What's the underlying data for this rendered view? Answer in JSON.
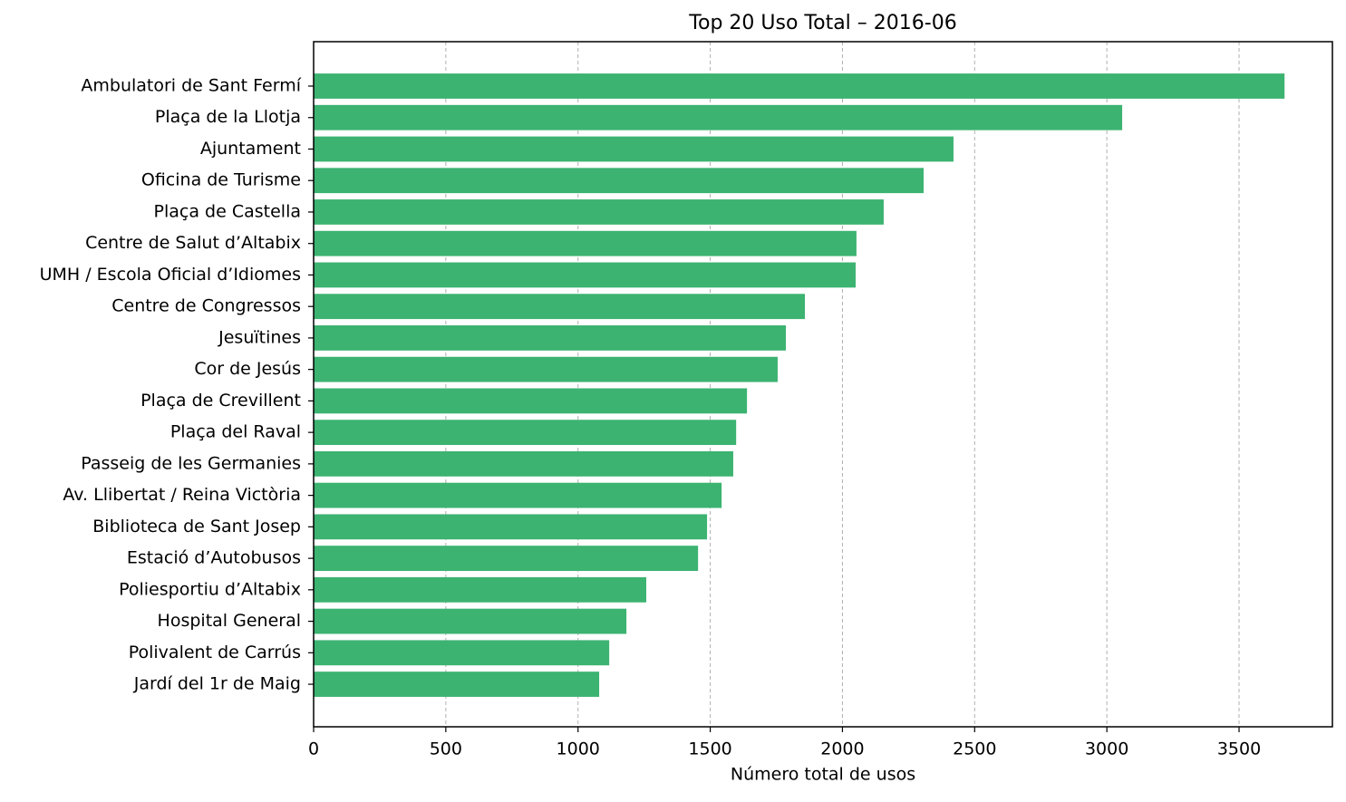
{
  "chart_data": {
    "type": "barh",
    "title": "Top 20 Uso Total – 2016-06",
    "xlabel": "Número total de usos",
    "categories": [
      "Ambulatori de Sant Fermí",
      "Plaça de la Llotja",
      "Ajuntament",
      "Oficina de Turisme",
      "Plaça de Castella",
      "Centre de Salut d’Altabix",
      "UMH / Escola Oficial d’Idiomes",
      "Centre de Congressos",
      "Jesuïtines",
      "Cor de Jesús",
      "Plaça de Crevillent",
      "Plaça del Raval",
      "Passeig de les Germanies",
      "Av. Llibertat / Reina Victòria",
      "Biblioteca de Sant Josep",
      "Estació d’Autobusos",
      "Poliesportiu d’Altabix",
      "Hospital General",
      "Polivalent de Carrús",
      "Jardí del 1r de Maig"
    ],
    "values": [
      3672,
      3058,
      2420,
      2307,
      2156,
      2053,
      2050,
      1858,
      1786,
      1755,
      1639,
      1598,
      1587,
      1543,
      1488,
      1454,
      1258,
      1183,
      1118,
      1080
    ],
    "color": "#3cb371",
    "xlim": [
      0,
      3853
    ],
    "xticks": [
      0,
      500,
      1000,
      1500,
      2000,
      2500,
      3000,
      3500
    ],
    "grid": true
  }
}
